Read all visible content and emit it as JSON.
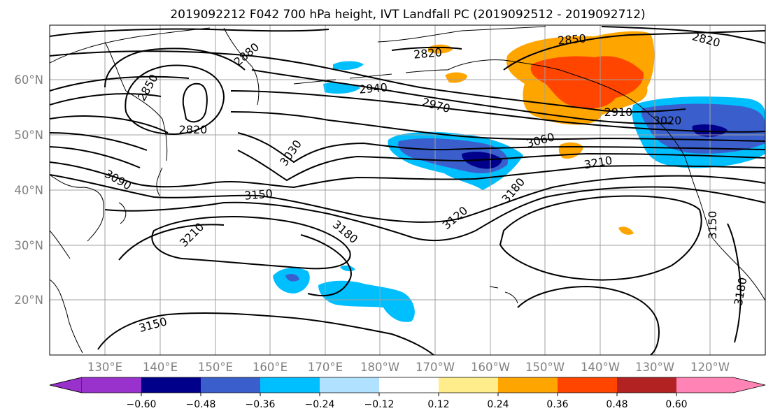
{
  "title": "2019092212 F042 700 hPa height, IVT Landfall PC (2019092512 - 2019092712)",
  "lat_labels": [
    "60°N",
    "50°N",
    "40°N",
    "30°N",
    "20°N"
  ],
  "lon_labels": [
    "130°E",
    "140°E",
    "150°E",
    "160°E",
    "170°E",
    "180°W",
    "170°W",
    "160°W",
    "150°W",
    "140°W",
    "130°W",
    "120°W"
  ],
  "colorbar": {
    "tick_labels": [
      "−0.60",
      "−0.48",
      "−0.36",
      "−0.24",
      "−0.12",
      "0.12",
      "0.24",
      "0.36",
      "0.48",
      "0.60"
    ],
    "colors": [
      "#9932cc",
      "#00008b",
      "#3a5fcd",
      "#00bfff",
      "#b0e2ff",
      "#ffffff",
      "#ffec8b",
      "#ffa500",
      "#ff4500",
      "#b22222",
      "#ff83b4"
    ]
  },
  "contour_labels": [
    "2880",
    "2850",
    "2820",
    "2850",
    "2820",
    "2820",
    "2940",
    "2970",
    "2910",
    "3060",
    "3020",
    "3030",
    "3090",
    "3150",
    "3210",
    "3120",
    "3180",
    "3180",
    "3150",
    "3180",
    "3210",
    "3150",
    "3180"
  ]
}
